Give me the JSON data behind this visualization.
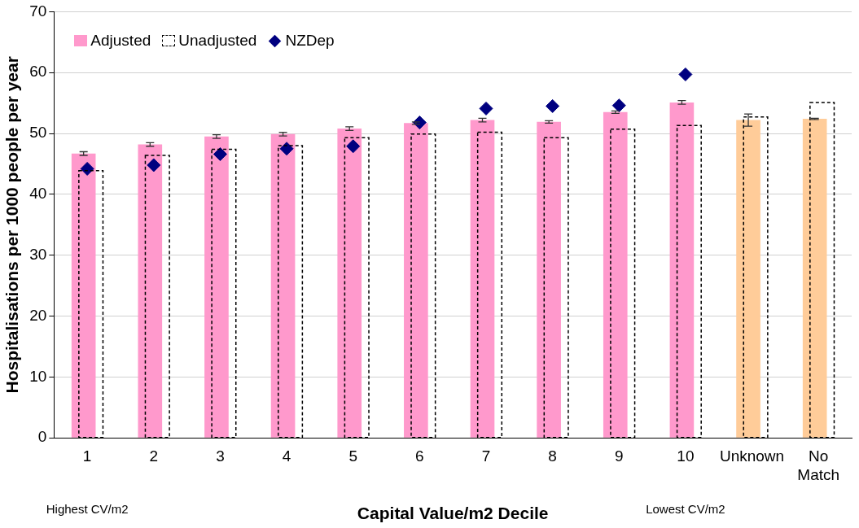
{
  "chart_data": {
    "type": "bar",
    "xlabel": "Capital Value/m2 Decile",
    "ylabel": "Hospitalisations per 1000 people per year",
    "categories": [
      "1",
      "2",
      "3",
      "4",
      "5",
      "6",
      "7",
      "8",
      "9",
      "10",
      "Unknown",
      "No Match"
    ],
    "series": [
      {
        "name": "Adjusted",
        "color": "#ff99cc",
        "colors": [
          "#ff99cc",
          "#ff99cc",
          "#ff99cc",
          "#ff99cc",
          "#ff99cc",
          "#ff99cc",
          "#ff99cc",
          "#ff99cc",
          "#ff99cc",
          "#ff99cc",
          "#ffcc99",
          "#ffcc99"
        ],
        "values": [
          46.7,
          48.2,
          49.5,
          49.9,
          50.8,
          51.7,
          52.2,
          51.9,
          53.5,
          55.1,
          52.2,
          52.4
        ],
        "errors": [
          0.3,
          0.3,
          0.3,
          0.3,
          0.3,
          0.2,
          0.3,
          0.2,
          0.2,
          0.3,
          1.0,
          0.1
        ]
      },
      {
        "name": "Unadjusted",
        "color": "#000000",
        "line_style": "dashed",
        "values": [
          43.9,
          46.4,
          47.4,
          48.0,
          49.3,
          49.9,
          50.2,
          49.3,
          50.7,
          51.3,
          52.7,
          55.1
        ]
      },
      {
        "name": "NZDep",
        "type": "scatter",
        "color": "#000080",
        "marker": "diamond",
        "x": [
          "1",
          "2",
          "3",
          "4",
          "5",
          "6",
          "7",
          "8",
          "9",
          "10"
        ],
        "values": [
          44.2,
          44.8,
          46.6,
          47.5,
          47.9,
          51.8,
          54.1,
          54.5,
          54.6,
          59.7
        ]
      }
    ],
    "ylim": [
      0,
      70
    ],
    "yticks": [
      0,
      10,
      20,
      30,
      40,
      50,
      60,
      70
    ],
    "grid": "y",
    "legend": "top left",
    "annotations": [
      "Highest CV/m2",
      "Lowest CV/m2"
    ]
  }
}
